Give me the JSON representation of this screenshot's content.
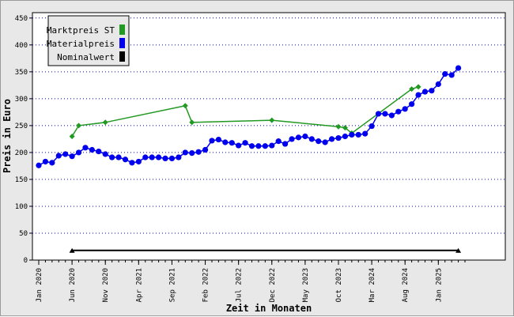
{
  "chart_data": {
    "type": "line",
    "xlabel": "Zeit in Monaten",
    "ylabel": "Preis in Euro",
    "ylim": [
      0,
      460
    ],
    "yticks": [
      0,
      50,
      100,
      150,
      200,
      250,
      300,
      350,
      400,
      450
    ],
    "xlim": [
      "2020-01",
      "2025-05"
    ],
    "xticks": [
      {
        "month": "2020-01",
        "label": "Jan 2020"
      },
      {
        "month": "2020-06",
        "label": "Jun 2020"
      },
      {
        "month": "2020-11",
        "label": "Nov 2020"
      },
      {
        "month": "2021-04",
        "label": "Apr 2021"
      },
      {
        "month": "2021-09",
        "label": "Sep 2021"
      },
      {
        "month": "2022-02",
        "label": "Feb 2022"
      },
      {
        "month": "2022-07",
        "label": "Jul 2022"
      },
      {
        "month": "2022-12",
        "label": "Dec 2022"
      },
      {
        "month": "2023-05",
        "label": "May 2023"
      },
      {
        "month": "2023-10",
        "label": "Oct 2023"
      },
      {
        "month": "2024-03",
        "label": "Mar 2024"
      },
      {
        "month": "2024-08",
        "label": "Aug 2024"
      },
      {
        "month": "2025-01",
        "label": "Jan 2025"
      }
    ],
    "grid": "horizontal dotted",
    "legend_position": "top-left",
    "series": [
      {
        "name": "Marktpreis ST",
        "color": "#229922",
        "marker": "diamond",
        "points": [
          {
            "x": "2020-06",
            "y": 230
          },
          {
            "x": "2020-07",
            "y": 250
          },
          {
            "x": "2020-11",
            "y": 256
          },
          {
            "x": "2021-11",
            "y": 287
          },
          {
            "x": "2021-12",
            "y": 256
          },
          {
            "x": "2022-12",
            "y": 260
          },
          {
            "x": "2023-10",
            "y": 248
          },
          {
            "x": "2023-11",
            "y": 246
          },
          {
            "x": "2023-12",
            "y": 236
          },
          {
            "x": "2024-09",
            "y": 318
          },
          {
            "x": "2024-10",
            "y": 322
          }
        ]
      },
      {
        "name": "Materialpreis",
        "color": "#0000ee",
        "marker": "circle",
        "points": [
          {
            "x": "2020-01",
            "y": 176
          },
          {
            "x": "2020-02",
            "y": 183
          },
          {
            "x": "2020-03",
            "y": 181
          },
          {
            "x": "2020-04",
            "y": 194
          },
          {
            "x": "2020-05",
            "y": 197
          },
          {
            "x": "2020-06",
            "y": 193
          },
          {
            "x": "2020-07",
            "y": 200
          },
          {
            "x": "2020-08",
            "y": 209
          },
          {
            "x": "2020-09",
            "y": 205
          },
          {
            "x": "2020-10",
            "y": 202
          },
          {
            "x": "2020-11",
            "y": 197
          },
          {
            "x": "2020-12",
            "y": 191
          },
          {
            "x": "2021-01",
            "y": 191
          },
          {
            "x": "2021-02",
            "y": 187
          },
          {
            "x": "2021-03",
            "y": 181
          },
          {
            "x": "2021-04",
            "y": 183
          },
          {
            "x": "2021-05",
            "y": 191
          },
          {
            "x": "2021-06",
            "y": 191
          },
          {
            "x": "2021-07",
            "y": 191
          },
          {
            "x": "2021-08",
            "y": 189
          },
          {
            "x": "2021-09",
            "y": 189
          },
          {
            "x": "2021-10",
            "y": 191
          },
          {
            "x": "2021-11",
            "y": 200
          },
          {
            "x": "2021-12",
            "y": 199
          },
          {
            "x": "2022-01",
            "y": 201
          },
          {
            "x": "2022-02",
            "y": 205
          },
          {
            "x": "2022-03",
            "y": 222
          },
          {
            "x": "2022-04",
            "y": 224
          },
          {
            "x": "2022-05",
            "y": 219
          },
          {
            "x": "2022-06",
            "y": 218
          },
          {
            "x": "2022-07",
            "y": 213
          },
          {
            "x": "2022-08",
            "y": 218
          },
          {
            "x": "2022-09",
            "y": 212
          },
          {
            "x": "2022-10",
            "y": 212
          },
          {
            "x": "2022-11",
            "y": 212
          },
          {
            "x": "2022-12",
            "y": 213
          },
          {
            "x": "2023-01",
            "y": 221
          },
          {
            "x": "2023-02",
            "y": 216
          },
          {
            "x": "2023-03",
            "y": 225
          },
          {
            "x": "2023-04",
            "y": 228
          },
          {
            "x": "2023-05",
            "y": 230
          },
          {
            "x": "2023-06",
            "y": 225
          },
          {
            "x": "2023-07",
            "y": 221
          },
          {
            "x": "2023-08",
            "y": 219
          },
          {
            "x": "2023-09",
            "y": 225
          },
          {
            "x": "2023-10",
            "y": 227
          },
          {
            "x": "2023-11",
            "y": 230
          },
          {
            "x": "2023-12",
            "y": 233
          },
          {
            "x": "2024-01",
            "y": 233
          },
          {
            "x": "2024-02",
            "y": 235
          },
          {
            "x": "2024-03",
            "y": 249
          },
          {
            "x": "2024-04",
            "y": 272
          },
          {
            "x": "2024-05",
            "y": 272
          },
          {
            "x": "2024-06",
            "y": 269
          },
          {
            "x": "2024-07",
            "y": 276
          },
          {
            "x": "2024-08",
            "y": 281
          },
          {
            "x": "2024-09",
            "y": 290
          },
          {
            "x": "2024-10",
            "y": 307
          },
          {
            "x": "2024-11",
            "y": 313
          },
          {
            "x": "2024-12",
            "y": 315
          },
          {
            "x": "2025-01",
            "y": 327
          },
          {
            "x": "2025-02",
            "y": 346
          },
          {
            "x": "2025-03",
            "y": 344
          },
          {
            "x": "2025-04",
            "y": 357
          }
        ]
      },
      {
        "name": "Nominalwert",
        "color": "#000000",
        "marker": "triangle",
        "points": [
          {
            "x": "2020-06",
            "y": 18
          },
          {
            "x": "2025-04",
            "y": 18
          }
        ]
      }
    ]
  }
}
